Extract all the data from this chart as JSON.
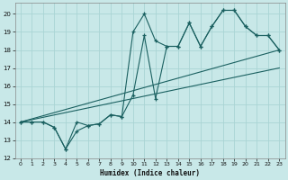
{
  "xlabel": "Humidex (Indice chaleur)",
  "bg_color": "#c8e8e8",
  "grid_color": "#aad4d4",
  "line_color": "#1a6060",
  "xlim": [
    -0.5,
    23.5
  ],
  "ylim": [
    12,
    20.6
  ],
  "yticks": [
    12,
    13,
    14,
    15,
    16,
    17,
    18,
    19,
    20
  ],
  "xticks": [
    0,
    1,
    2,
    3,
    4,
    5,
    6,
    7,
    8,
    9,
    10,
    11,
    12,
    13,
    14,
    15,
    16,
    17,
    18,
    19,
    20,
    21,
    22,
    23
  ],
  "series1_x": [
    0,
    1,
    2,
    3,
    4,
    5,
    6,
    7,
    8,
    9,
    10,
    11,
    12,
    13,
    14,
    15,
    16,
    17,
    18,
    19,
    20,
    21,
    22,
    23
  ],
  "series1_y": [
    14.0,
    14.0,
    14.0,
    13.7,
    12.5,
    14.0,
    13.8,
    13.9,
    14.4,
    14.3,
    19.0,
    20.0,
    18.5,
    18.2,
    18.2,
    19.5,
    18.2,
    19.3,
    20.2,
    20.2,
    19.3,
    18.8,
    18.8,
    18.0
  ],
  "series2_x": [
    0,
    1,
    2,
    3,
    4,
    5,
    6,
    7,
    8,
    9,
    10,
    11,
    12,
    13,
    14,
    15,
    16,
    17,
    18,
    19,
    20,
    21,
    22,
    23
  ],
  "series2_y": [
    14.0,
    14.0,
    14.0,
    13.7,
    12.5,
    13.5,
    13.8,
    13.9,
    14.4,
    14.3,
    15.5,
    18.8,
    15.3,
    18.2,
    18.2,
    19.5,
    18.2,
    19.3,
    20.2,
    20.2,
    19.3,
    18.8,
    18.8,
    18.0
  ],
  "line1_x": [
    0,
    23
  ],
  "line1_y": [
    14.0,
    17.0
  ],
  "line2_x": [
    0,
    23
  ],
  "line2_y": [
    14.0,
    18.0
  ]
}
